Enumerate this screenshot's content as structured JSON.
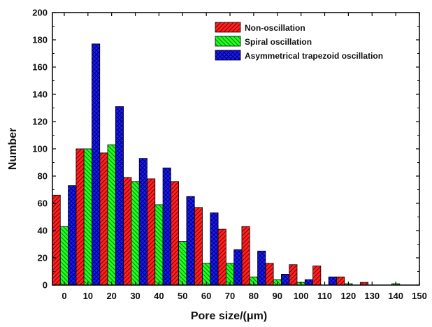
{
  "chart_data": {
    "type": "bar",
    "xlabel": "Pore size/(μm)",
    "ylabel": "Number",
    "xlim": [
      -5,
      150
    ],
    "ylim": [
      0,
      200
    ],
    "x_ticks": [
      0,
      10,
      20,
      30,
      40,
      50,
      60,
      70,
      80,
      90,
      100,
      110,
      120,
      130,
      140,
      150
    ],
    "y_ticks": [
      0,
      20,
      40,
      60,
      80,
      100,
      120,
      140,
      160,
      180,
      200
    ],
    "bin_starts": [
      0,
      10,
      20,
      30,
      40,
      50,
      60,
      70,
      80,
      90,
      100,
      110,
      120,
      130,
      140
    ],
    "legend_position": "top-right",
    "series": [
      {
        "name": "Non-oscillation",
        "color": "#ff0000",
        "hatch": "diagonal-right",
        "values": [
          66,
          100,
          97,
          79,
          78,
          76,
          57,
          41,
          43,
          16,
          15,
          14,
          6,
          2,
          0
        ]
      },
      {
        "name": "Spiral oscillation",
        "color": "#00ff00",
        "hatch": "diagonal-left",
        "values": [
          43,
          100,
          103,
          76,
          59,
          32,
          16,
          16,
          6,
          4,
          2,
          0,
          1,
          0,
          1
        ]
      },
      {
        "name": "Asymmetrical trapezoid oscillation",
        "color": "#0000ff",
        "hatch": "crosshatch",
        "values": [
          73,
          177,
          131,
          93,
          86,
          65,
          53,
          26,
          25,
          8,
          4,
          6,
          0,
          0,
          0
        ]
      }
    ]
  }
}
